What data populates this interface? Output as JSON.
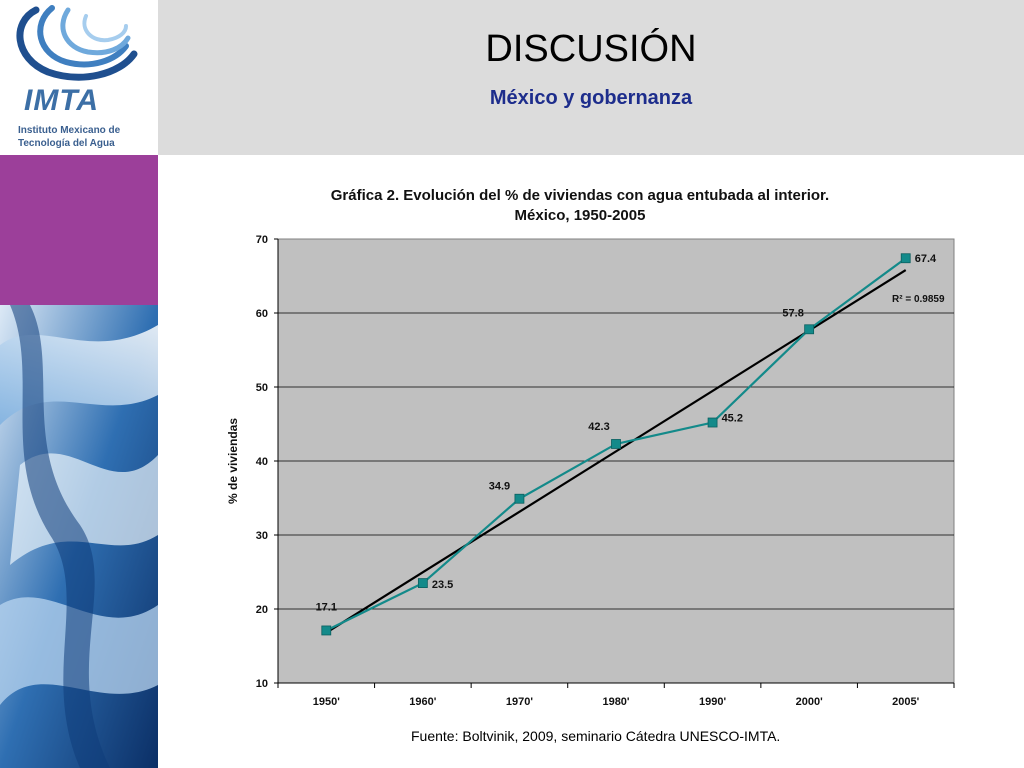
{
  "logo": {
    "mark": "IMTA",
    "caption_line1": "Instituto Mexicano de",
    "caption_line2": "Tecnología del Agua"
  },
  "slide": {
    "title": "DISCUSIÓN",
    "subtitle": "México y gobernanza",
    "source": "Fuente: Boltvinik, 2009, seminario Cátedra UNESCO-IMTA."
  },
  "colors": {
    "header_band": "#dcdcdc",
    "purple_block": "#9c3f9a",
    "subtitle": "#1d2d8c",
    "series": "#138a8a",
    "trend": "#000000",
    "plot_bg": "#c0c0c0"
  },
  "chart_data": {
    "type": "line",
    "title_line1": "Gráfica 2. Evolución del % de viviendas con agua entubada al interior.",
    "title_line2": "México, 1950-2005",
    "ylabel": "% de viviendas",
    "xlabel": "",
    "categories": [
      "1950'",
      "1960'",
      "1970'",
      "1980'",
      "1990'",
      "2000'",
      "2005'"
    ],
    "series": [
      {
        "values": [
          17.1,
          23.5,
          34.9,
          42.3,
          45.2,
          57.8,
          67.4
        ]
      }
    ],
    "data_labels": [
      "17.1",
      "23.5",
      "34.9",
      "42.3",
      "45.2",
      "57.8",
      "67.4"
    ],
    "trendline": {
      "type": "linear",
      "start": 16.8,
      "end": 65.8,
      "label": "R² = 0.9859"
    },
    "ylim": [
      10,
      70
    ],
    "yticks": [
      10,
      20,
      30,
      40,
      50,
      60,
      70
    ],
    "grid": true
  }
}
